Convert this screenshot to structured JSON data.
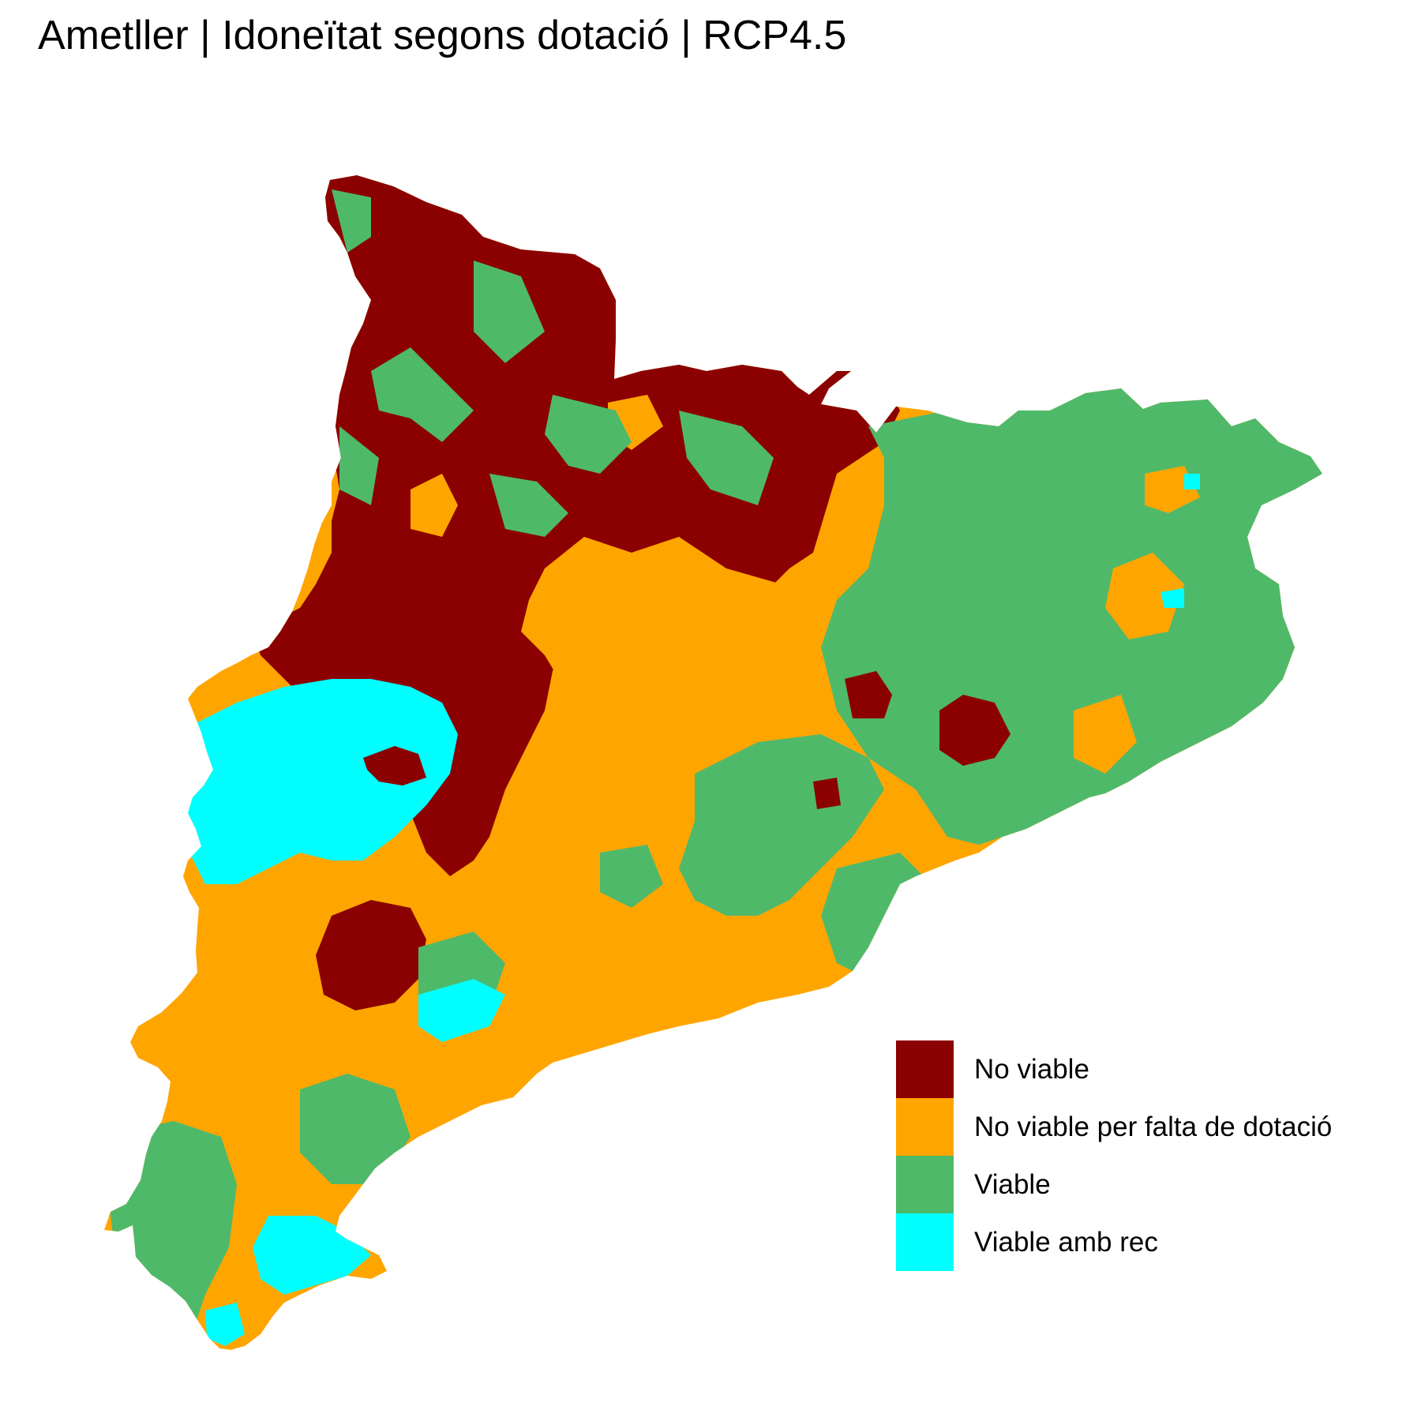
{
  "title": "Ametller | Idoneïtat segons dotació | RCP4.5",
  "legend": [
    {
      "label": "No viable",
      "color": "#8b0000"
    },
    {
      "label": "No viable per falta de dotació",
      "color": "#ffa500"
    },
    {
      "label": "Viable",
      "color": "#4fb96a"
    },
    {
      "label": "Viable amb rec",
      "color": "#00ffff"
    }
  ]
}
